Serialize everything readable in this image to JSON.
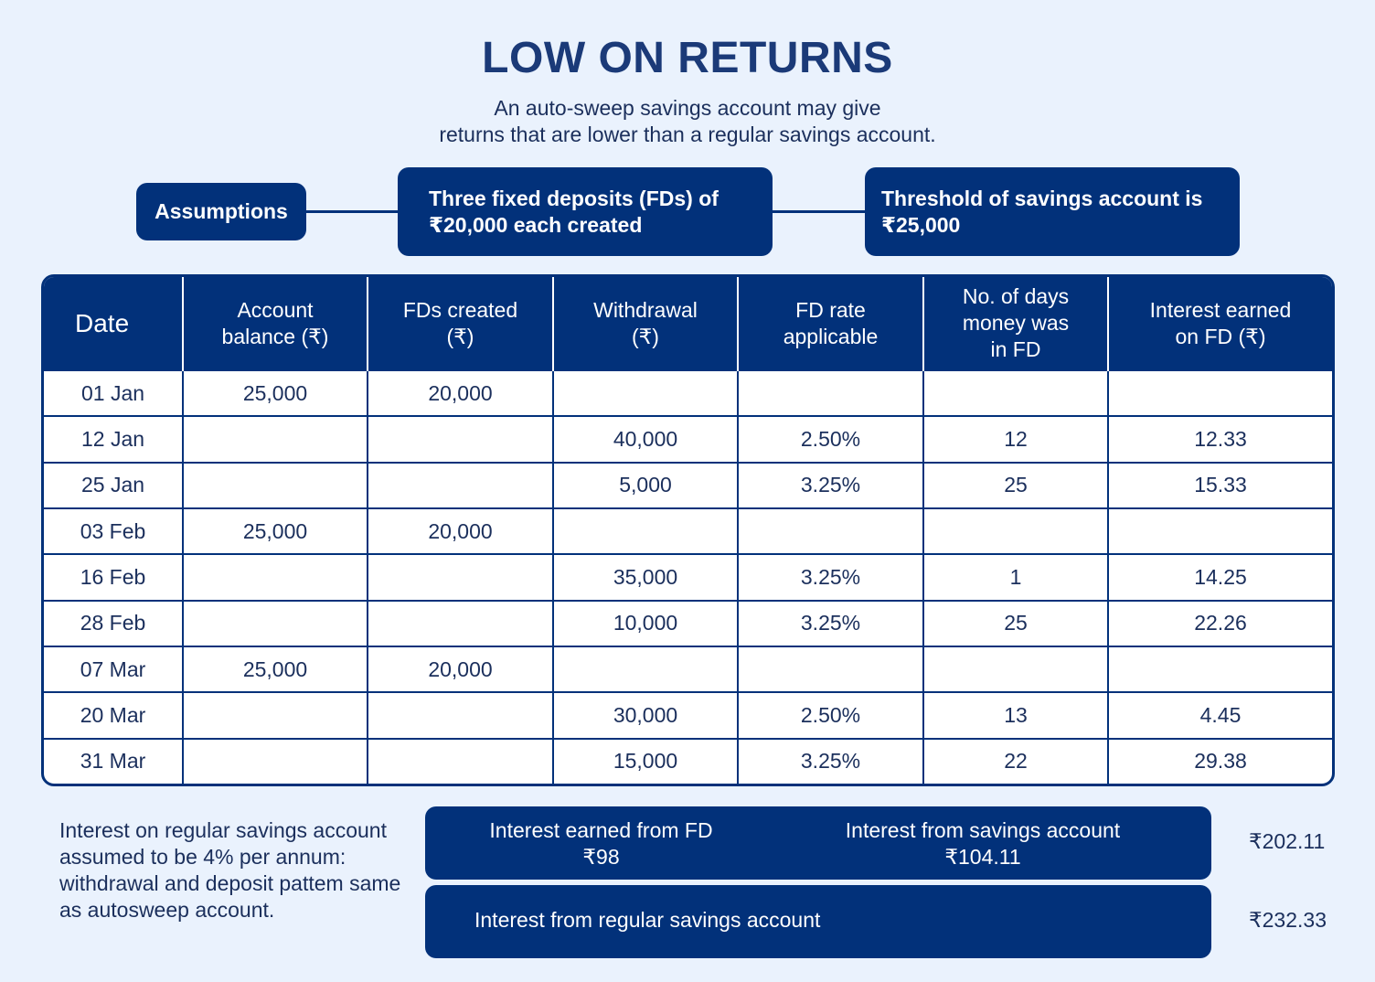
{
  "title": "LOW ON RETURNS",
  "subtitle": {
    "line1": "An auto-sweep savings account may give",
    "line2": "returns that are lower than a regular savings account."
  },
  "assumptions": {
    "label": "Assumptions",
    "fd_note": {
      "line1": "Three fixed deposits (FDs) of",
      "line2": "₹20,000 each created"
    },
    "threshold_note": {
      "line1": "Threshold of savings account is",
      "line2": "₹25,000"
    }
  },
  "table": {
    "headers": [
      [
        "Date"
      ],
      [
        "Account",
        "balance (₹)"
      ],
      [
        "FDs created",
        "(₹)"
      ],
      [
        "Withdrawal",
        "(₹)"
      ],
      [
        "FD rate",
        "applicable"
      ],
      [
        "No. of days",
        "money was",
        "in FD"
      ],
      [
        "Interest earned",
        "on FD (₹)"
      ]
    ],
    "rows": [
      [
        "01 Jan",
        "25,000",
        "20,000",
        "",
        "",
        "",
        ""
      ],
      [
        "12 Jan",
        "",
        "",
        "40,000",
        "2.50%",
        "12",
        "12.33"
      ],
      [
        "25 Jan",
        "",
        "",
        "5,000",
        "3.25%",
        "25",
        "15.33"
      ],
      [
        "03 Feb",
        "25,000",
        "20,000",
        "",
        "",
        "",
        ""
      ],
      [
        "16 Feb",
        "",
        "",
        "35,000",
        "3.25%",
        "1",
        "14.25"
      ],
      [
        "28 Feb",
        "",
        "",
        "10,000",
        "3.25%",
        "25",
        "22.26"
      ],
      [
        "07 Mar",
        "25,000",
        "20,000",
        "",
        "",
        "",
        ""
      ],
      [
        "20 Mar",
        "",
        "",
        "30,000",
        "2.50%",
        "13",
        "4.45"
      ],
      [
        "31 Mar",
        "",
        "",
        "15,000",
        "3.25%",
        "22",
        "29.38"
      ]
    ]
  },
  "note": "Interest on regular savings account assumed to be 4% per annum: withdrawal and deposit pattem same as autosweep account.",
  "summary": {
    "fd_label": "Interest earned from FD",
    "fd_value": "₹98",
    "savings_label": "Interest from savings account",
    "savings_value": "₹104.11",
    "autosweep_total": "₹202.11",
    "regular_label": "Interest from regular savings account",
    "regular_total": "₹232.33"
  },
  "colors": {
    "background": "#eaf2fd",
    "navy": "#02317a",
    "title": "#1b3a78"
  }
}
